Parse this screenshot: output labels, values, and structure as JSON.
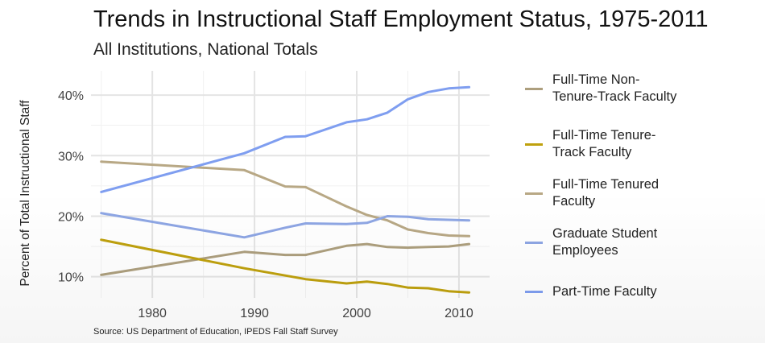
{
  "chart_data": {
    "type": "line",
    "title": "Trends in Instructional Staff Employment Status, 1975-2011",
    "subtitle": "All Institutions, National Totals",
    "ylabel": "Percent of Total Instructional Staff",
    "source": "Source: US Department of Education, IPEDS Fall Staff Survey",
    "xlim": [
      1974,
      2013
    ],
    "ylim": [
      6.5,
      44
    ],
    "x_ticks": [
      1980,
      1990,
      2000,
      2010
    ],
    "y_ticks": [
      10,
      20,
      30,
      40
    ],
    "y_tick_labels": [
      "10%",
      "20%",
      "30%",
      "40%"
    ],
    "grid": true,
    "legend_position": "right",
    "x": [
      1975,
      1989,
      1993,
      1995,
      1999,
      2001,
      2003,
      2005,
      2007,
      2009,
      2011
    ],
    "series": [
      {
        "name": "Full-Time Non-\nTenure-Track Faculty",
        "color": "#ad9f7e",
        "values": [
          10.3,
          14.1,
          13.6,
          13.6,
          15.1,
          15.4,
          14.9,
          14.8,
          14.9,
          15.0,
          15.4
        ]
      },
      {
        "name": "Full-Time Tenure-\nTrack Faculty",
        "color": "#bfa10e",
        "values": [
          16.1,
          11.4,
          10.2,
          9.6,
          8.9,
          9.2,
          8.8,
          8.2,
          8.1,
          7.6,
          7.4
        ]
      },
      {
        "name": "Full-Time Tenured\nFaculty",
        "color": "#b8a885",
        "values": [
          29.0,
          27.6,
          24.9,
          24.8,
          21.6,
          20.2,
          19.3,
          17.8,
          17.2,
          16.8,
          16.7
        ]
      },
      {
        "name": "Graduate Student\nEmployees",
        "color": "#8ea6e4",
        "values": [
          20.5,
          16.5,
          18.1,
          18.8,
          18.7,
          18.9,
          20.0,
          19.9,
          19.5,
          19.4,
          19.3
        ]
      },
      {
        "name": "Part-Time Faculty",
        "color": "#7f9ef0",
        "values": [
          24.0,
          30.4,
          33.1,
          33.2,
          35.5,
          36.0,
          37.1,
          39.3,
          40.5,
          41.1,
          41.3
        ]
      }
    ]
  }
}
